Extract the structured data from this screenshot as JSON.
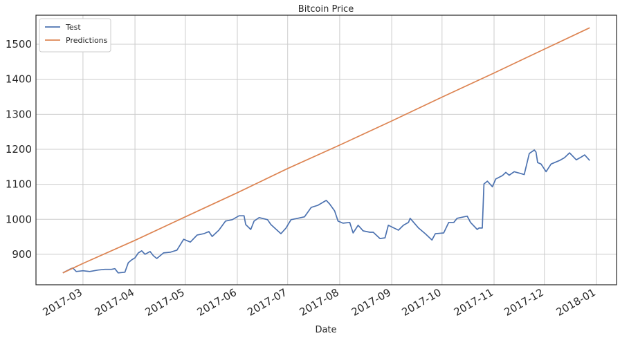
{
  "chart_data": {
    "type": "line",
    "title": "Bitcoin Price",
    "x_label": "Date",
    "xlim": [
      "2017-02-01",
      "2018-01-13"
    ],
    "xticks": [
      {
        "value": "2017-03-01",
        "label": "2017-03"
      },
      {
        "value": "2017-04-01",
        "label": "2017-04"
      },
      {
        "value": "2017-05-01",
        "label": "2017-05"
      },
      {
        "value": "2017-06-01",
        "label": "2017-06"
      },
      {
        "value": "2017-07-01",
        "label": "2017-07"
      },
      {
        "value": "2017-08-01",
        "label": "2017-08"
      },
      {
        "value": "2017-09-01",
        "label": "2017-09"
      },
      {
        "value": "2017-10-01",
        "label": "2017-10"
      },
      {
        "value": "2017-11-01",
        "label": "2017-11"
      },
      {
        "value": "2017-12-01",
        "label": "2017-12"
      },
      {
        "value": "2018-01-01",
        "label": "2018-01"
      }
    ],
    "ylim": [
      813,
      1583
    ],
    "yticks": [
      900,
      1000,
      1100,
      1200,
      1300,
      1400,
      1500
    ],
    "grid": true,
    "legend": "upper left",
    "series": [
      {
        "name": "Test",
        "color": "#4c72b0",
        "x": [
          "2017-02-17",
          "2017-02-21",
          "2017-02-23",
          "2017-02-25",
          "2017-03-01",
          "2017-03-05",
          "2017-03-10",
          "2017-03-14",
          "2017-03-18",
          "2017-03-20",
          "2017-03-22",
          "2017-03-26",
          "2017-03-28",
          "2017-03-30",
          "2017-04-01",
          "2017-04-03",
          "2017-04-05",
          "2017-04-07",
          "2017-04-10",
          "2017-04-12",
          "2017-04-14",
          "2017-04-18",
          "2017-04-22",
          "2017-04-26",
          "2017-04-30",
          "2017-05-04",
          "2017-05-08",
          "2017-05-12",
          "2017-05-15",
          "2017-05-17",
          "2017-05-21",
          "2017-05-25",
          "2017-05-29",
          "2017-06-02",
          "2017-06-05",
          "2017-06-06",
          "2017-06-09",
          "2017-06-11",
          "2017-06-14",
          "2017-06-19",
          "2017-06-21",
          "2017-06-27",
          "2017-06-30",
          "2017-07-03",
          "2017-07-07",
          "2017-07-11",
          "2017-07-15",
          "2017-07-19",
          "2017-07-24",
          "2017-07-26",
          "2017-07-29",
          "2017-07-31",
          "2017-08-03",
          "2017-08-07",
          "2017-08-09",
          "2017-08-12",
          "2017-08-15",
          "2017-08-19",
          "2017-08-21",
          "2017-08-25",
          "2017-08-28",
          "2017-08-30",
          "2017-09-05",
          "2017-09-08",
          "2017-09-11",
          "2017-09-12",
          "2017-09-17",
          "2017-09-21",
          "2017-09-25",
          "2017-09-27",
          "2017-10-02",
          "2017-10-05",
          "2017-10-08",
          "2017-10-10",
          "2017-10-16",
          "2017-10-18",
          "2017-10-22",
          "2017-10-23",
          "2017-10-25",
          "2017-10-26",
          "2017-10-28",
          "2017-10-31",
          "2017-11-02",
          "2017-11-06",
          "2017-11-08",
          "2017-11-10",
          "2017-11-13",
          "2017-11-16",
          "2017-11-19",
          "2017-11-22",
          "2017-11-25",
          "2017-11-26",
          "2017-11-27",
          "2017-11-29",
          "2017-12-02",
          "2017-12-05",
          "2017-12-10",
          "2017-12-13",
          "2017-12-16",
          "2017-12-20",
          "2017-12-23",
          "2017-12-25",
          "2017-12-28"
        ],
        "values": [
          847,
          857,
          861,
          851,
          853,
          851,
          855,
          857,
          857,
          859,
          847,
          849,
          876,
          884,
          890,
          904,
          910,
          900,
          908,
          896,
          888,
          904,
          906,
          912,
          943,
          935,
          955,
          959,
          965,
          951,
          969,
          995,
          999,
          1010,
          1010,
          985,
          971,
          995,
          1005,
          999,
          985,
          959,
          975,
          999,
          1003,
          1007,
          1034,
          1040,
          1054,
          1044,
          1024,
          995,
          989,
          991,
          961,
          983,
          967,
          963,
          963,
          945,
          947,
          983,
          969,
          983,
          991,
          1003,
          975,
          959,
          941,
          959,
          961,
          991,
          991,
          1003,
          1009,
          991,
          971,
          975,
          975,
          1101,
          1109,
          1093,
          1115,
          1125,
          1134,
          1126,
          1136,
          1132,
          1128,
          1188,
          1198,
          1192,
          1162,
          1158,
          1136,
          1158,
          1168,
          1176,
          1190,
          1170,
          1178,
          1184,
          1168
        ]
      },
      {
        "name": "Predictions",
        "color": "#dd8452",
        "x": [
          "2017-02-17",
          "2017-03-01",
          "2017-04-01",
          "2017-05-01",
          "2017-06-01",
          "2017-07-01",
          "2017-08-01",
          "2017-09-01",
          "2017-10-01",
          "2017-11-01",
          "2017-12-01",
          "2017-12-28"
        ],
        "values": [
          847,
          874,
          940,
          1007,
          1076,
          1145,
          1212,
          1281,
          1349,
          1418,
          1486,
          1547
        ]
      }
    ]
  }
}
